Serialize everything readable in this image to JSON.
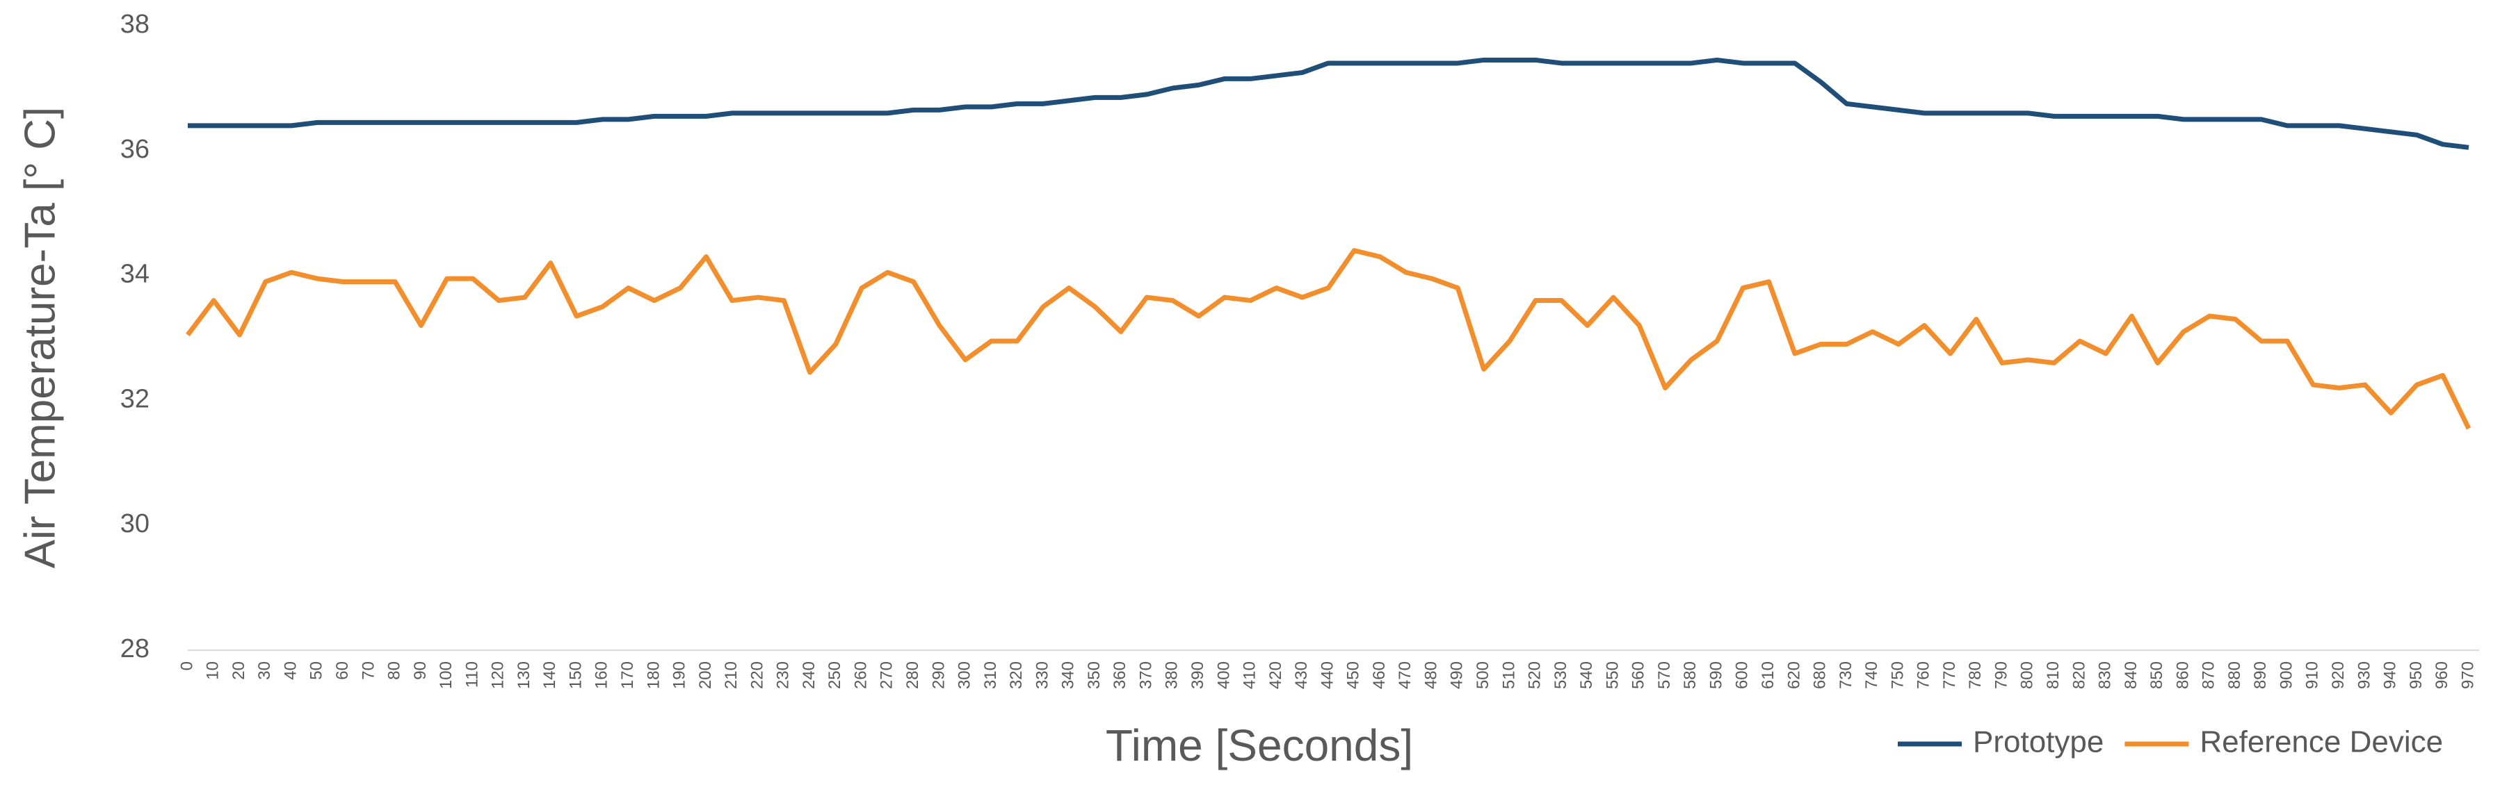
{
  "chart_data": {
    "type": "line",
    "x_label": "Time [Seconds]",
    "y_label": "Air Temperature-Ta [° C]",
    "categories": [
      "0",
      "10",
      "20",
      "30",
      "40",
      "50",
      "60",
      "70",
      "80",
      "90",
      "100",
      "110",
      "120",
      "130",
      "140",
      "150",
      "160",
      "170",
      "180",
      "190",
      "200",
      "210",
      "220",
      "230",
      "240",
      "250",
      "260",
      "270",
      "280",
      "290",
      "300",
      "310",
      "320",
      "330",
      "340",
      "350",
      "360",
      "370",
      "380",
      "390",
      "400",
      "410",
      "420",
      "430",
      "440",
      "450",
      "460",
      "470",
      "480",
      "490",
      "500",
      "510",
      "520",
      "530",
      "540",
      "550",
      "560",
      "570",
      "580",
      "590",
      "600",
      "610",
      "620",
      "680",
      "730",
      "740",
      "750",
      "760",
      "770",
      "780",
      "790",
      "800",
      "810",
      "820",
      "830",
      "840",
      "850",
      "860",
      "870",
      "880",
      "890",
      "900",
      "910",
      "920",
      "930",
      "940",
      "950",
      "960",
      "970"
    ],
    "series": [
      {
        "name": "Prototype",
        "color": "#1f4e79",
        "values": [
          36.4,
          36.4,
          36.4,
          36.4,
          36.4,
          36.45,
          36.45,
          36.45,
          36.45,
          36.45,
          36.45,
          36.45,
          36.45,
          36.45,
          36.45,
          36.45,
          36.5,
          36.5,
          36.55,
          36.55,
          36.55,
          36.6,
          36.6,
          36.6,
          36.6,
          36.6,
          36.6,
          36.6,
          36.65,
          36.65,
          36.7,
          36.7,
          36.75,
          36.75,
          36.8,
          36.85,
          36.85,
          36.9,
          37.0,
          37.05,
          37.15,
          37.15,
          37.2,
          37.25,
          37.4,
          37.4,
          37.4,
          37.4,
          37.4,
          37.4,
          37.45,
          37.45,
          37.45,
          37.4,
          37.4,
          37.4,
          37.4,
          37.4,
          37.4,
          37.45,
          37.4,
          37.4,
          37.4,
          37.1,
          36.75,
          36.7,
          36.65,
          36.6,
          36.6,
          36.6,
          36.6,
          36.6,
          36.55,
          36.55,
          36.55,
          36.55,
          36.55,
          36.5,
          36.5,
          36.5,
          36.5,
          36.4,
          36.4,
          36.4,
          36.35,
          36.3,
          36.25,
          36.1,
          36.05
        ]
      },
      {
        "name": "Reference Device",
        "color": "#f28e2b",
        "values": [
          33.05,
          33.6,
          33.05,
          33.9,
          34.05,
          33.95,
          33.9,
          33.9,
          33.9,
          33.2,
          33.95,
          33.95,
          33.6,
          33.65,
          34.2,
          33.35,
          33.5,
          33.8,
          33.6,
          33.8,
          34.3,
          33.6,
          33.65,
          33.6,
          32.45,
          32.9,
          33.8,
          34.05,
          33.9,
          33.2,
          32.65,
          32.95,
          32.95,
          33.5,
          33.8,
          33.5,
          33.1,
          33.65,
          33.6,
          33.35,
          33.65,
          33.6,
          33.8,
          33.65,
          33.8,
          34.4,
          34.3,
          34.05,
          33.95,
          33.8,
          32.5,
          32.95,
          33.6,
          33.6,
          33.2,
          33.65,
          33.2,
          32.2,
          32.65,
          32.95,
          33.8,
          33.9,
          32.75,
          32.9,
          32.9,
          33.1,
          32.9,
          33.2,
          32.75,
          33.3,
          32.6,
          32.65,
          32.6,
          32.95,
          32.75,
          33.35,
          32.6,
          33.1,
          33.35,
          33.3,
          32.95,
          32.95,
          32.25,
          32.2,
          32.25,
          31.8,
          32.25,
          32.4,
          31.55
        ]
      }
    ],
    "ylim": [
      28,
      38
    ],
    "yticks": [
      28,
      30,
      32,
      34,
      36,
      38
    ],
    "grid": false,
    "legend": "bottom-right"
  }
}
